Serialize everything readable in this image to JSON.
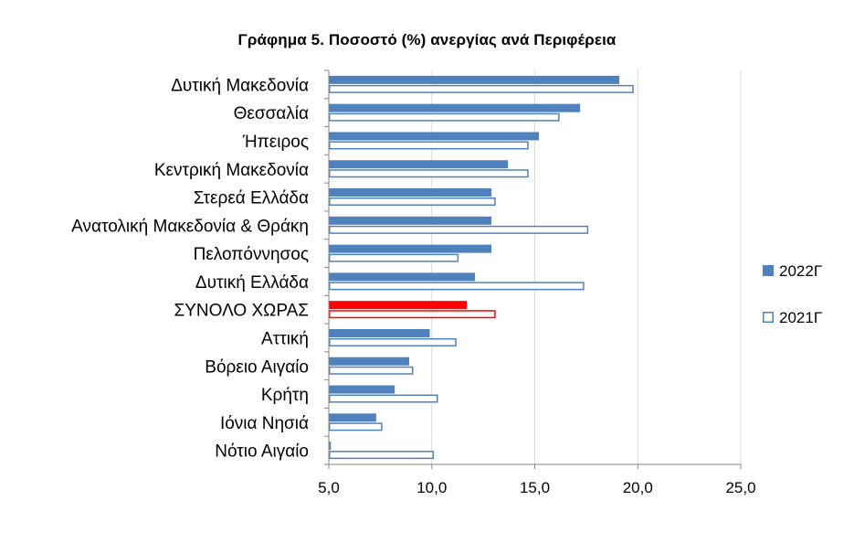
{
  "chart_data": {
    "type": "bar",
    "orientation": "horizontal",
    "title": "Γράφημα 5. Ποσοστό (%) ανεργίας ανά Περιφέρεια",
    "xlabel": "",
    "ylabel": "",
    "xlim": [
      5.0,
      25.0
    ],
    "xticks": [
      "5,0",
      "10,0",
      "15,0",
      "20,0",
      "25,0"
    ],
    "xtick_values": [
      5,
      10,
      15,
      20,
      25
    ],
    "grid": "vertical",
    "legend_position": "right",
    "categories": [
      "Δυτική Μακεδονία",
      "Θεσσαλία",
      "Ήπειρος",
      "Κεντρική Μακεδονία",
      "Στερεά Ελλάδα",
      "Ανατολική Μακεδονία & Θράκη",
      "Πελοπόννησος",
      "Δυτική Ελλάδα",
      "ΣΥΝΟΛΟ ΧΩΡΑΣ",
      "Αττική",
      "Βόρειο Αιγαίο",
      "Κρήτη",
      "Ιόνια Νησιά",
      "Νότιο Αιγαίο"
    ],
    "highlight_category": "ΣΥΝΟΛΟ ΧΩΡΑΣ",
    "highlight_color": "#ff0000",
    "series": [
      {
        "name": "2022Γ",
        "style": "filled",
        "color": "#4f81bd",
        "values": [
          19.1,
          17.2,
          15.2,
          13.7,
          12.9,
          12.9,
          12.9,
          12.1,
          11.7,
          9.9,
          8.9,
          8.2,
          7.3,
          5.1
        ]
      },
      {
        "name": "2021Γ",
        "style": "outline",
        "color": "#4f81bd",
        "values": [
          19.8,
          16.2,
          14.7,
          14.7,
          13.1,
          17.6,
          11.3,
          17.4,
          13.1,
          11.2,
          9.1,
          10.3,
          7.6,
          10.1
        ]
      }
    ]
  }
}
